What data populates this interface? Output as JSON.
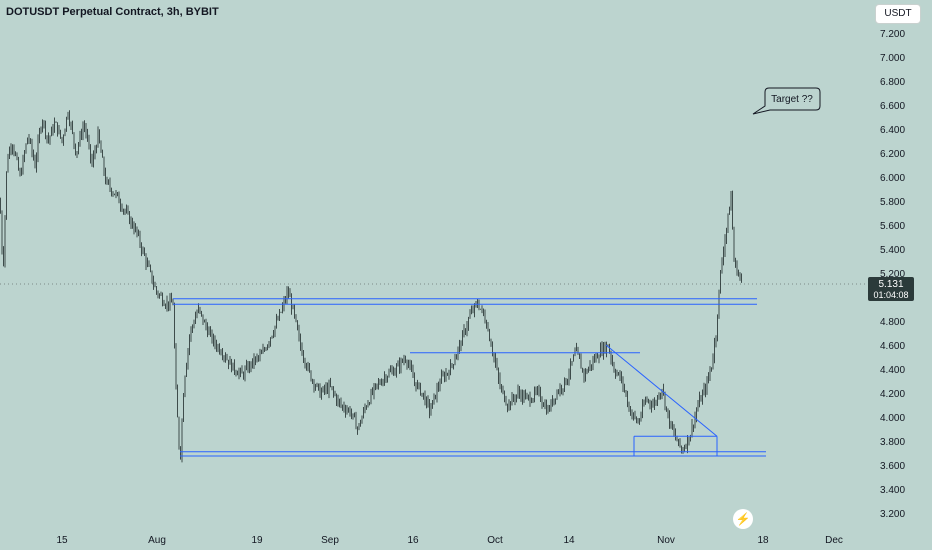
{
  "header": {
    "symbol_title": "DOTUSDT Perpetual Contract, 3h, BYBIT",
    "currency": "USDT"
  },
  "price_tag": {
    "price": "5.131",
    "countdown": "01:04:08"
  },
  "annotation": {
    "text": "Target ??"
  },
  "icons": {
    "quick_action": "lightning-icon"
  },
  "colors": {
    "background": "#bcd4cf",
    "candles": "#1f2a2a",
    "drawings": "#2962ff",
    "price_tag": "#2b3a3a"
  },
  "chart_data": {
    "type": "candlestick",
    "symbol": "DOTUSDT",
    "exchange": "BYBIT",
    "interval": "3h",
    "y_ticks": [
      "7.200",
      "7.000",
      "6.800",
      "6.600",
      "6.400",
      "6.200",
      "6.000",
      "5.800",
      "5.600",
      "5.400",
      "5.200",
      "5.000",
      "4.800",
      "4.600",
      "4.400",
      "4.200",
      "4.000",
      "3.800",
      "3.600",
      "3.400",
      "3.200"
    ],
    "x_ticks": [
      "15",
      "Aug",
      "19",
      "Sep",
      "16",
      "Oct",
      "14",
      "Nov",
      "18",
      "Dec"
    ],
    "ylim": [
      3.1,
      7.35
    ],
    "last_price": 5.131,
    "price_path": [
      [
        0,
        5.8
      ],
      [
        3,
        5.2
      ],
      [
        7,
        6.15
      ],
      [
        12,
        6.3
      ],
      [
        20,
        6.0
      ],
      [
        28,
        6.35
      ],
      [
        35,
        6.1
      ],
      [
        42,
        6.5
      ],
      [
        48,
        6.3
      ],
      [
        55,
        6.45
      ],
      [
        62,
        6.3
      ],
      [
        68,
        6.55
      ],
      [
        76,
        6.2
      ],
      [
        84,
        6.45
      ],
      [
        92,
        6.1
      ],
      [
        98,
        6.35
      ],
      [
        106,
        5.95
      ],
      [
        116,
        5.85
      ],
      [
        126,
        5.7
      ],
      [
        136,
        5.55
      ],
      [
        146,
        5.3
      ],
      [
        156,
        5.05
      ],
      [
        166,
        4.95
      ],
      [
        173,
        4.95
      ],
      [
        176,
        4.2
      ],
      [
        180,
        3.62
      ],
      [
        184,
        4.3
      ],
      [
        190,
        4.7
      ],
      [
        198,
        4.9
      ],
      [
        206,
        4.75
      ],
      [
        214,
        4.62
      ],
      [
        222,
        4.55
      ],
      [
        232,
        4.42
      ],
      [
        242,
        4.35
      ],
      [
        252,
        4.45
      ],
      [
        262,
        4.52
      ],
      [
        272,
        4.7
      ],
      [
        280,
        4.85
      ],
      [
        288,
        5.05
      ],
      [
        294,
        4.85
      ],
      [
        300,
        4.6
      ],
      [
        310,
        4.35
      ],
      [
        320,
        4.2
      ],
      [
        330,
        4.25
      ],
      [
        340,
        4.1
      ],
      [
        350,
        4.05
      ],
      [
        358,
        3.9
      ],
      [
        366,
        4.1
      ],
      [
        376,
        4.25
      ],
      [
        386,
        4.35
      ],
      [
        396,
        4.4
      ],
      [
        406,
        4.5
      ],
      [
        414,
        4.3
      ],
      [
        422,
        4.2
      ],
      [
        430,
        4.05
      ],
      [
        440,
        4.3
      ],
      [
        450,
        4.4
      ],
      [
        460,
        4.6
      ],
      [
        470,
        4.85
      ],
      [
        478,
        4.95
      ],
      [
        486,
        4.8
      ],
      [
        494,
        4.5
      ],
      [
        500,
        4.25
      ],
      [
        508,
        4.1
      ],
      [
        518,
        4.2
      ],
      [
        528,
        4.15
      ],
      [
        538,
        4.2
      ],
      [
        548,
        4.05
      ],
      [
        556,
        4.2
      ],
      [
        566,
        4.3
      ],
      [
        576,
        4.55
      ],
      [
        584,
        4.35
      ],
      [
        592,
        4.45
      ],
      [
        600,
        4.55
      ],
      [
        608,
        4.6
      ],
      [
        614,
        4.4
      ],
      [
        622,
        4.3
      ],
      [
        630,
        4.05
      ],
      [
        638,
        3.95
      ],
      [
        646,
        4.15
      ],
      [
        654,
        4.1
      ],
      [
        662,
        4.25
      ],
      [
        668,
        4.0
      ],
      [
        674,
        3.85
      ],
      [
        682,
        3.72
      ],
      [
        690,
        3.85
      ],
      [
        698,
        4.1
      ],
      [
        706,
        4.25
      ],
      [
        712,
        4.45
      ],
      [
        716,
        4.7
      ],
      [
        720,
        5.15
      ],
      [
        724,
        5.45
      ],
      [
        728,
        5.65
      ],
      [
        731,
        5.85
      ],
      [
        734,
        5.3
      ],
      [
        738,
        5.2
      ],
      [
        742,
        5.13
      ]
    ],
    "drawings": [
      {
        "kind": "resistance-line-upper",
        "x": [
          173,
          757
        ],
        "y": 4.985
      },
      {
        "kind": "resistance-line-lower",
        "x": [
          173,
          757
        ],
        "y": 4.94
      },
      {
        "kind": "support-line-upper",
        "x": [
          180,
          766
        ],
        "y": 3.71
      },
      {
        "kind": "support-line-lower",
        "x": [
          180,
          766
        ],
        "y": 3.675
      },
      {
        "kind": "mid-range-line",
        "x": [
          410,
          640
        ],
        "y": 4.535
      },
      {
        "kind": "wedge-top-line",
        "x": [
          606,
          717
        ],
        "y": 4.6,
        "y2": 3.84
      },
      {
        "kind": "wedge-base-line",
        "x": [
          634,
          717
        ],
        "y": 3.84
      }
    ],
    "grid": false,
    "legend": "none"
  }
}
